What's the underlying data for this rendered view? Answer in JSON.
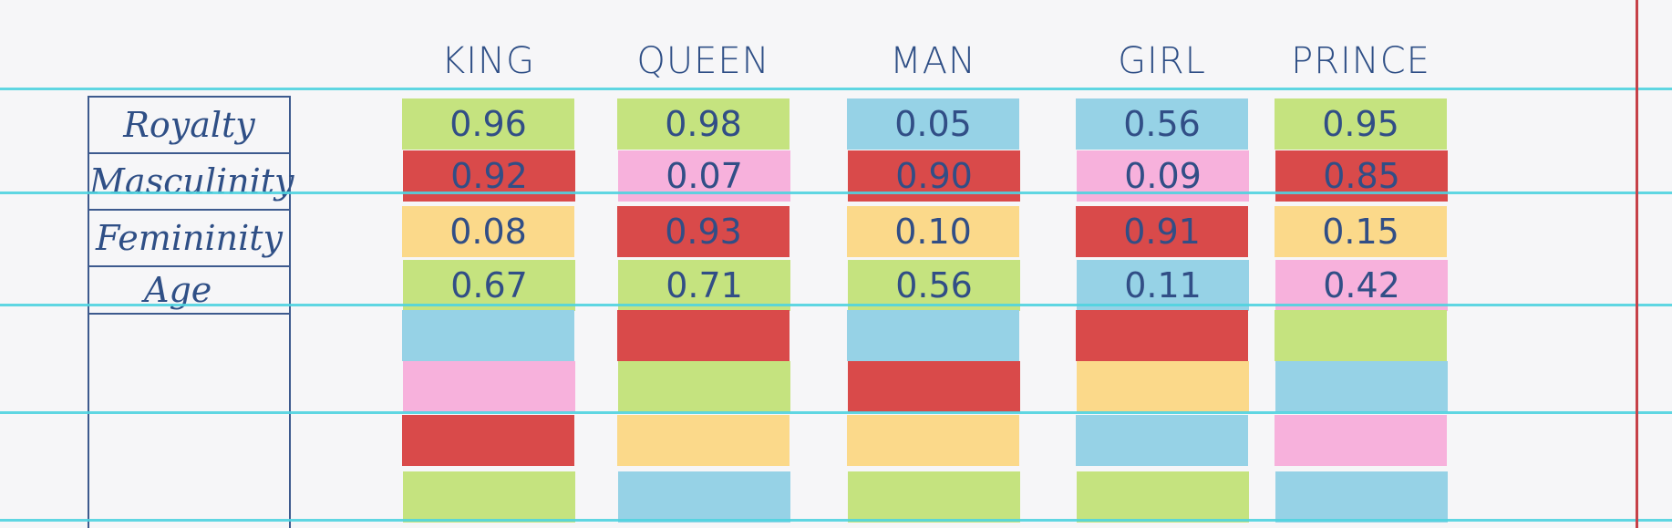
{
  "words": [
    {
      "name": "KING",
      "values": [
        "0.96",
        "0.92",
        "0.08",
        "0.67"
      ],
      "colors": [
        "green",
        "red",
        "yellow",
        "green",
        "blue",
        "pink",
        "red",
        "green"
      ]
    },
    {
      "name": "QUEEN",
      "values": [
        "0.98",
        "0.07",
        "0.93",
        "0.71"
      ],
      "colors": [
        "green",
        "pink",
        "red",
        "green",
        "red",
        "green",
        "yellow",
        "blue"
      ]
    },
    {
      "name": "MAN",
      "values": [
        "0.05",
        "0.90",
        "0.10",
        "0.56"
      ],
      "colors": [
        "blue",
        "red",
        "yellow",
        "green",
        "blue",
        "red",
        "yellow",
        "green"
      ]
    },
    {
      "name": "GIRL",
      "values": [
        "0.56",
        "0.09",
        "0.91",
        "0.11"
      ],
      "colors": [
        "blue",
        "pink",
        "red",
        "blue",
        "red",
        "yellow",
        "blue",
        "green"
      ]
    },
    {
      "name": "PRINCE",
      "values": [
        "0.95",
        "0.85",
        "0.15",
        "0.42"
      ],
      "colors": [
        "green",
        "red",
        "yellow",
        "pink",
        "green",
        "blue",
        "pink",
        "blue"
      ]
    }
  ],
  "features": [
    "Royalty",
    "Masculinity",
    "Femininity",
    "Age"
  ],
  "palette": {
    "green": "#c5e37f",
    "red": "#d94a4a",
    "pink": "#f7b1dc",
    "yellow": "#fbd98a",
    "blue": "#96d2e6",
    "rule_line": "#4fd3df",
    "margin_line": "#c64148",
    "ink": "#2f4f86"
  }
}
